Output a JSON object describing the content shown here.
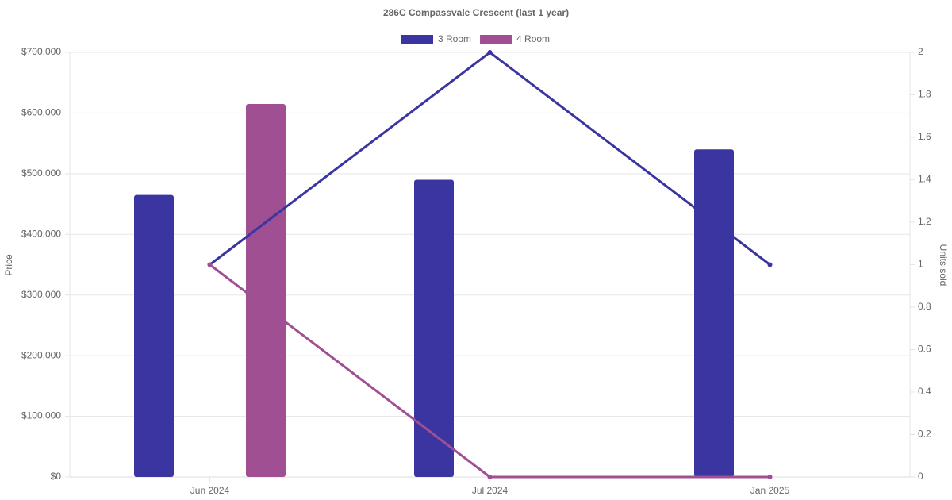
{
  "chart_data": {
    "type": "bar-line",
    "title": "286C Compassvale Crescent (last 1 year)",
    "categories": [
      "Jun 2024",
      "Jul 2024",
      "Jan 2025"
    ],
    "series": [
      {
        "name": "3 Room",
        "color": "#3a35a0",
        "values": [
          465000,
          490000,
          540000
        ],
        "units_sold": [
          1,
          2,
          1
        ]
      },
      {
        "name": "4 Room",
        "color": "#a04f93",
        "values": [
          615000,
          null,
          null
        ],
        "units_sold": [
          1,
          0,
          0
        ]
      }
    ],
    "y_label": "Price",
    "y2_label": "Units sold",
    "ylim": [
      0,
      700000
    ],
    "yticks": [
      {
        "value": 0,
        "label": "$0"
      },
      {
        "value": 100000,
        "label": "$100,000"
      },
      {
        "value": 200000,
        "label": "$200,000"
      },
      {
        "value": 300000,
        "label": "$300,000"
      },
      {
        "value": 400000,
        "label": "$400,000"
      },
      {
        "value": 500000,
        "label": "$500,000"
      },
      {
        "value": 600000,
        "label": "$600,000"
      },
      {
        "value": 700000,
        "label": "$700,000"
      }
    ],
    "y2lim": [
      0,
      2
    ],
    "y2ticks": [
      0,
      0.2,
      0.4,
      0.6,
      0.8,
      1,
      1.2,
      1.4,
      1.6,
      1.8,
      2
    ],
    "grid": true,
    "legend": "top"
  }
}
